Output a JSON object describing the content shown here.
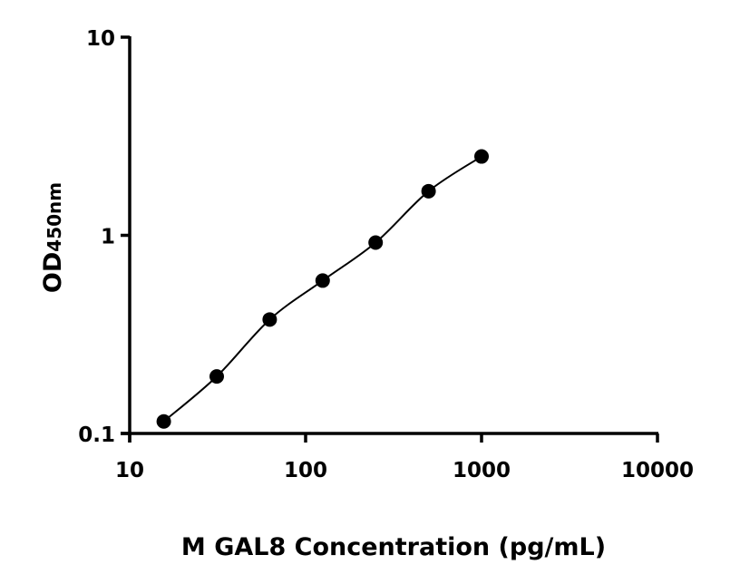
{
  "chart_data": {
    "type": "scatter",
    "title": "",
    "xlabel": "M GAL8 Concentration (pg/mL)",
    "ylabel_main": "OD",
    "ylabel_sub": "450nm",
    "x_scale": "log",
    "y_scale": "log",
    "xlim": [
      10,
      10000
    ],
    "ylim": [
      0.1,
      10
    ],
    "x_ticks": [
      "10",
      "100",
      "1000",
      "10000"
    ],
    "y_ticks": [
      "0.1",
      "1",
      "10"
    ],
    "grid": false,
    "fit_curve": true,
    "x": [
      15.625,
      31.25,
      62.5,
      125,
      250,
      500,
      1000
    ],
    "y": [
      0.115,
      0.194,
      0.376,
      0.591,
      0.919,
      1.67,
      2.5
    ],
    "marker_color": "#000000"
  }
}
